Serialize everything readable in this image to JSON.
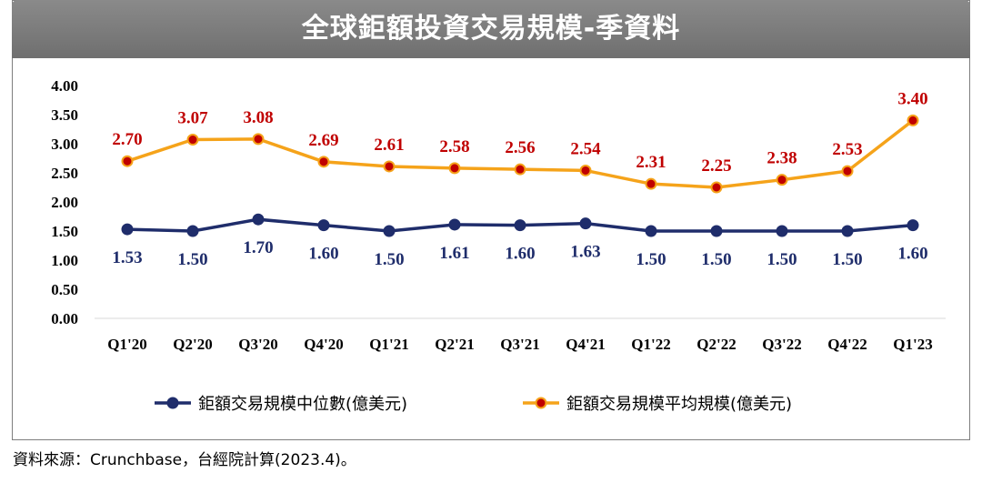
{
  "title": "全球鉅額投資交易規模-季資料",
  "source": "資料來源：Crunchbase，台經院計算(2023.4)。",
  "chart_data": {
    "type": "line",
    "categories": [
      "Q1'20",
      "Q2'20",
      "Q3'20",
      "Q4'20",
      "Q1'21",
      "Q2'21",
      "Q3'21",
      "Q4'21",
      "Q1'22",
      "Q2'22",
      "Q3'22",
      "Q4'22",
      "Q1'23"
    ],
    "ylim": [
      0,
      4
    ],
    "yticks": [
      "0.00",
      "0.50",
      "1.00",
      "1.50",
      "2.00",
      "2.50",
      "3.00",
      "3.50",
      "4.00"
    ],
    "grid": false,
    "legend_position": "bottom",
    "series": [
      {
        "name": "鉅額交易規模中位數(億美元)",
        "color": "#1f2d6b",
        "marker_color": "#1f2d6b",
        "values": [
          1.53,
          1.5,
          1.7,
          1.6,
          1.5,
          1.61,
          1.6,
          1.63,
          1.5,
          1.5,
          1.5,
          1.5,
          1.6
        ],
        "labels": [
          "1.53",
          "1.50",
          "1.70",
          "1.60",
          "1.50",
          "1.61",
          "1.60",
          "1.63",
          "1.50",
          "1.50",
          "1.50",
          "1.50",
          "1.60"
        ],
        "label_color": "#1f2d6b"
      },
      {
        "name": "鉅額交易規模平均規模(億美元)",
        "color": "#f5a31a",
        "marker_color": "#c00000",
        "values": [
          2.7,
          3.07,
          3.08,
          2.69,
          2.61,
          2.58,
          2.56,
          2.54,
          2.31,
          2.25,
          2.38,
          2.53,
          3.4
        ],
        "labels": [
          "2.70",
          "3.07",
          "3.08",
          "2.69",
          "2.61",
          "2.58",
          "2.56",
          "2.54",
          "2.31",
          "2.25",
          "2.38",
          "2.53",
          "3.40"
        ],
        "label_color": "#c00000"
      }
    ]
  }
}
